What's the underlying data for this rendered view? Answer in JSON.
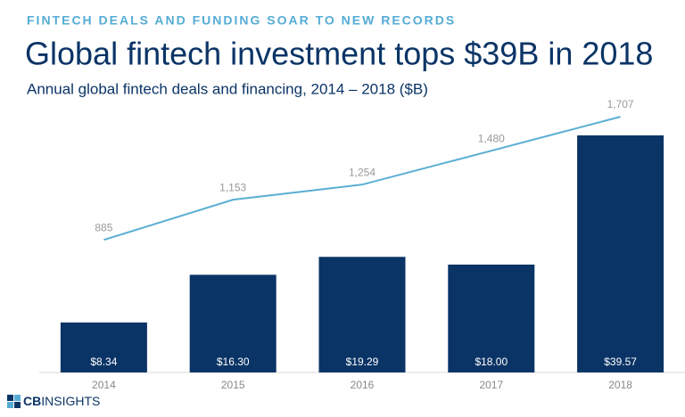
{
  "chart_data": {
    "type": "combo",
    "kicker": "FINTECH DEALS AND FUNDING SOAR TO NEW RECORDS",
    "title": "Global fintech investment tops $39B in 2018",
    "subtitle": "Annual global fintech deals and financing, 2014 – 2018 ($B)",
    "categories": [
      "2014",
      "2015",
      "2016",
      "2017",
      "2018"
    ],
    "series": [
      {
        "type": "bar",
        "color": "#0b3466",
        "values": [
          8.34,
          16.3,
          19.29,
          18.0,
          39.57
        ],
        "value_labels": [
          "$8.34",
          "$16.30",
          "$19.29",
          "$18.00",
          "$39.57"
        ]
      },
      {
        "type": "line",
        "axis": "y2",
        "color": "#5aafd3",
        "values": [
          885,
          1153,
          1254,
          1480,
          1707
        ],
        "value_labels": [
          "885",
          "1,153",
          "1,254",
          "1,480",
          "1,707"
        ]
      }
    ],
    "ylim": [
      0,
      40
    ],
    "y2lim": [
      0,
      1600
    ],
    "grid": false
  },
  "branding": {
    "logo_bold": "CB",
    "logo_light": "INSIGHTS"
  }
}
